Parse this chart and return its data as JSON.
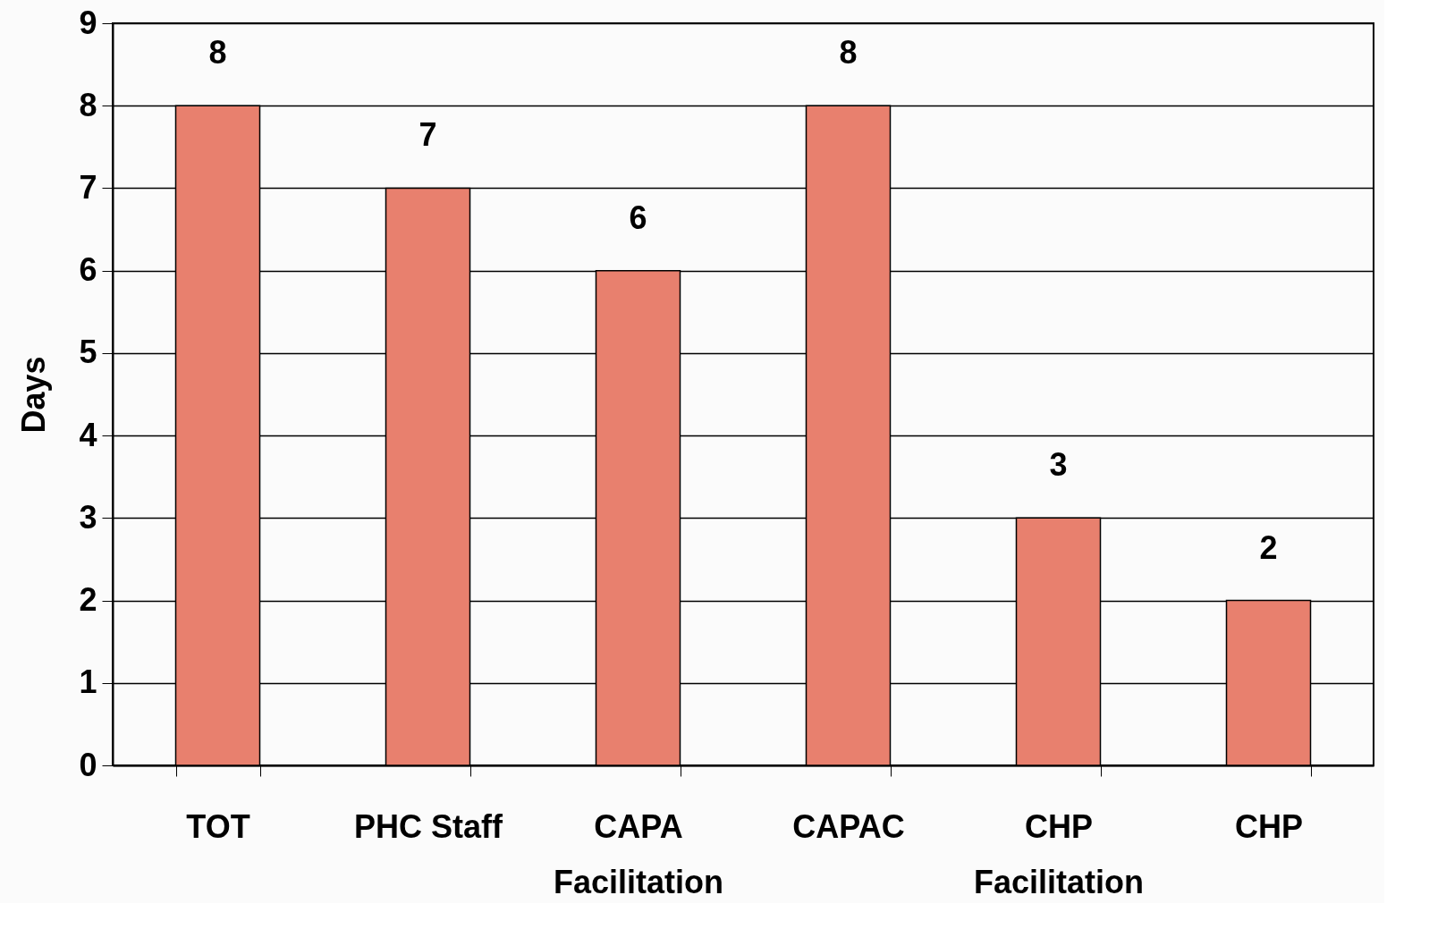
{
  "chart_data": {
    "type": "bar",
    "ylabel": "Days",
    "categories": [
      "TOT",
      "PHC Staff",
      "CAPA Facilitation",
      "CAPAC",
      "CHP Facilitation",
      "CHP"
    ],
    "values": [
      8,
      7,
      6,
      8,
      3,
      2
    ],
    "color": "#e8806e",
    "ylim": [
      0,
      9
    ],
    "yticks": [
      0,
      1,
      2,
      3,
      4,
      5,
      6,
      7,
      8,
      9
    ],
    "grid": "y",
    "data_labels": true
  }
}
